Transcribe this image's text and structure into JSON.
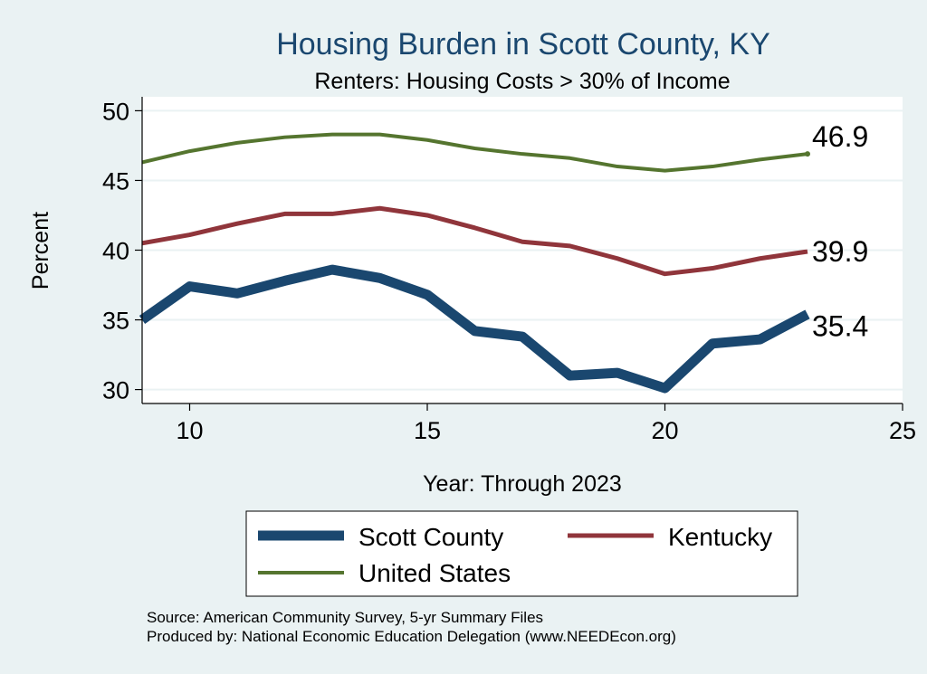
{
  "chart_data": {
    "type": "line",
    "title": "Housing Burden in Scott County, KY",
    "subtitle": "Renters: Housing Costs > 30% of Income",
    "xlabel": "Year: Through 2023",
    "ylabel": "Percent",
    "xlim": [
      9,
      25
    ],
    "ylim": [
      29,
      51
    ],
    "xticks": [
      "10",
      "15",
      "20",
      "25"
    ],
    "yticks": [
      "30",
      "35",
      "40",
      "45",
      "50"
    ],
    "grid": true,
    "legend_position": "bottom",
    "x": [
      9,
      10,
      11,
      12,
      13,
      14,
      15,
      16,
      17,
      18,
      19,
      20,
      21,
      22,
      23
    ],
    "series": [
      {
        "name": "Scott County",
        "color": "#1a476f",
        "values": [
          35.0,
          37.4,
          36.9,
          37.8,
          38.6,
          38.0,
          36.8,
          34.2,
          33.8,
          31.0,
          31.2,
          30.1,
          33.3,
          33.6,
          35.4
        ],
        "end_label": "35.4"
      },
      {
        "name": "Kentucky",
        "color": "#90353b",
        "values": [
          40.5,
          41.1,
          41.9,
          42.6,
          42.6,
          43.0,
          42.5,
          41.6,
          40.6,
          40.3,
          39.4,
          38.3,
          38.7,
          39.4,
          39.9
        ],
        "end_label": "39.9"
      },
      {
        "name": "United States",
        "color": "#55752f",
        "values": [
          46.3,
          47.1,
          47.7,
          48.1,
          48.3,
          48.3,
          47.9,
          47.3,
          46.9,
          46.6,
          46.0,
          45.7,
          46.0,
          46.5,
          46.9
        ],
        "end_label": "46.9"
      }
    ],
    "notes": [
      "Source: American Community Survey, 5-yr Summary Files",
      "Produced by: National Economic Education Delegation (www.NEEDEcon.org)"
    ]
  }
}
